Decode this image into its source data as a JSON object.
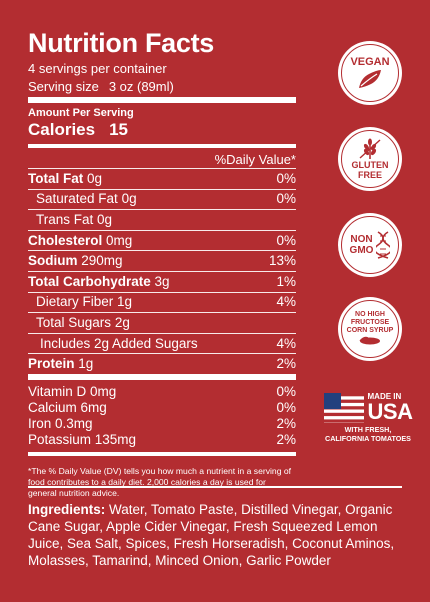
{
  "label": {
    "title": "Nutrition Facts",
    "servings_per_container": "4 servings per container",
    "serving_size_label": "Serving size",
    "serving_size_value": "3 oz (89ml)",
    "amount_per_serving": "Amount Per Serving",
    "calories_label": "Calories",
    "calories_value": "15",
    "dv_header": "%Daily Value*",
    "rows": [
      {
        "name": "Total Fat",
        "amount": "0g",
        "dv": "0%",
        "bold": true,
        "indent": 0
      },
      {
        "name": "Saturated Fat",
        "amount": "0g",
        "dv": "0%",
        "bold": false,
        "indent": 1
      },
      {
        "name": "Trans Fat",
        "amount": "0g",
        "dv": "",
        "bold": false,
        "indent": 1
      },
      {
        "name": "Cholesterol",
        "amount": "0mg",
        "dv": "0%",
        "bold": true,
        "indent": 0
      },
      {
        "name": "Sodium",
        "amount": "290mg",
        "dv": "13%",
        "bold": true,
        "indent": 0
      },
      {
        "name": "Total Carbohydrate",
        "amount": "3g",
        "dv": "1%",
        "bold": true,
        "indent": 0
      },
      {
        "name": "Dietary Fiber",
        "amount": "1g",
        "dv": "4%",
        "bold": false,
        "indent": 1
      },
      {
        "name": "Total Sugars",
        "amount": "2g",
        "dv": "",
        "bold": false,
        "indent": 1
      },
      {
        "name": "Includes 2g Added Sugars",
        "amount": "",
        "dv": "4%",
        "bold": false,
        "indent": 2
      },
      {
        "name": "Protein",
        "amount": "1g",
        "dv": "2%",
        "bold": true,
        "indent": 0
      }
    ],
    "vitamins": [
      {
        "text": "Vitamin D 0mg",
        "dv": "0%"
      },
      {
        "text": "Calcium 6mg",
        "dv": "0%"
      },
      {
        "text": "Iron 0.3mg",
        "dv": "2%"
      },
      {
        "text": "Potassium 135mg",
        "dv": "2%"
      }
    ],
    "footnote": "*The % Daily Value (DV) tells you how much a nutrient in a serving of food contributes to a daily diet. 2,000 calories a day is used for general nutrition advice."
  },
  "badges": {
    "vegan": "VEGAN",
    "gluten_free_1": "GLUTEN",
    "gluten_free_2": "FREE",
    "non_gmo_1": "NON",
    "non_gmo_2": "GMO",
    "hfcs_1": "NO HIGH",
    "hfcs_2": "FRUCTOSE",
    "hfcs_3": "CORN SYRUP",
    "made_in": "MADE IN",
    "usa": "USA",
    "with_fresh_1": "WITH FRESH,",
    "with_fresh_2": "CALIFORNIA TOMATOES"
  },
  "ingredients": {
    "label": "Ingredients:",
    "text": " Water, Tomato Paste, Distilled Vinegar, Organic Cane Sugar, Apple Cider Vinegar, Fresh Squeezed Lemon Juice, Sea Salt, Spices, Fresh Horseradish, Coconut Aminos, Molasses, Tamarind, Minced Onion, Garlic Powder"
  },
  "colors": {
    "background": "#b32d31",
    "foreground": "#ffffff"
  }
}
